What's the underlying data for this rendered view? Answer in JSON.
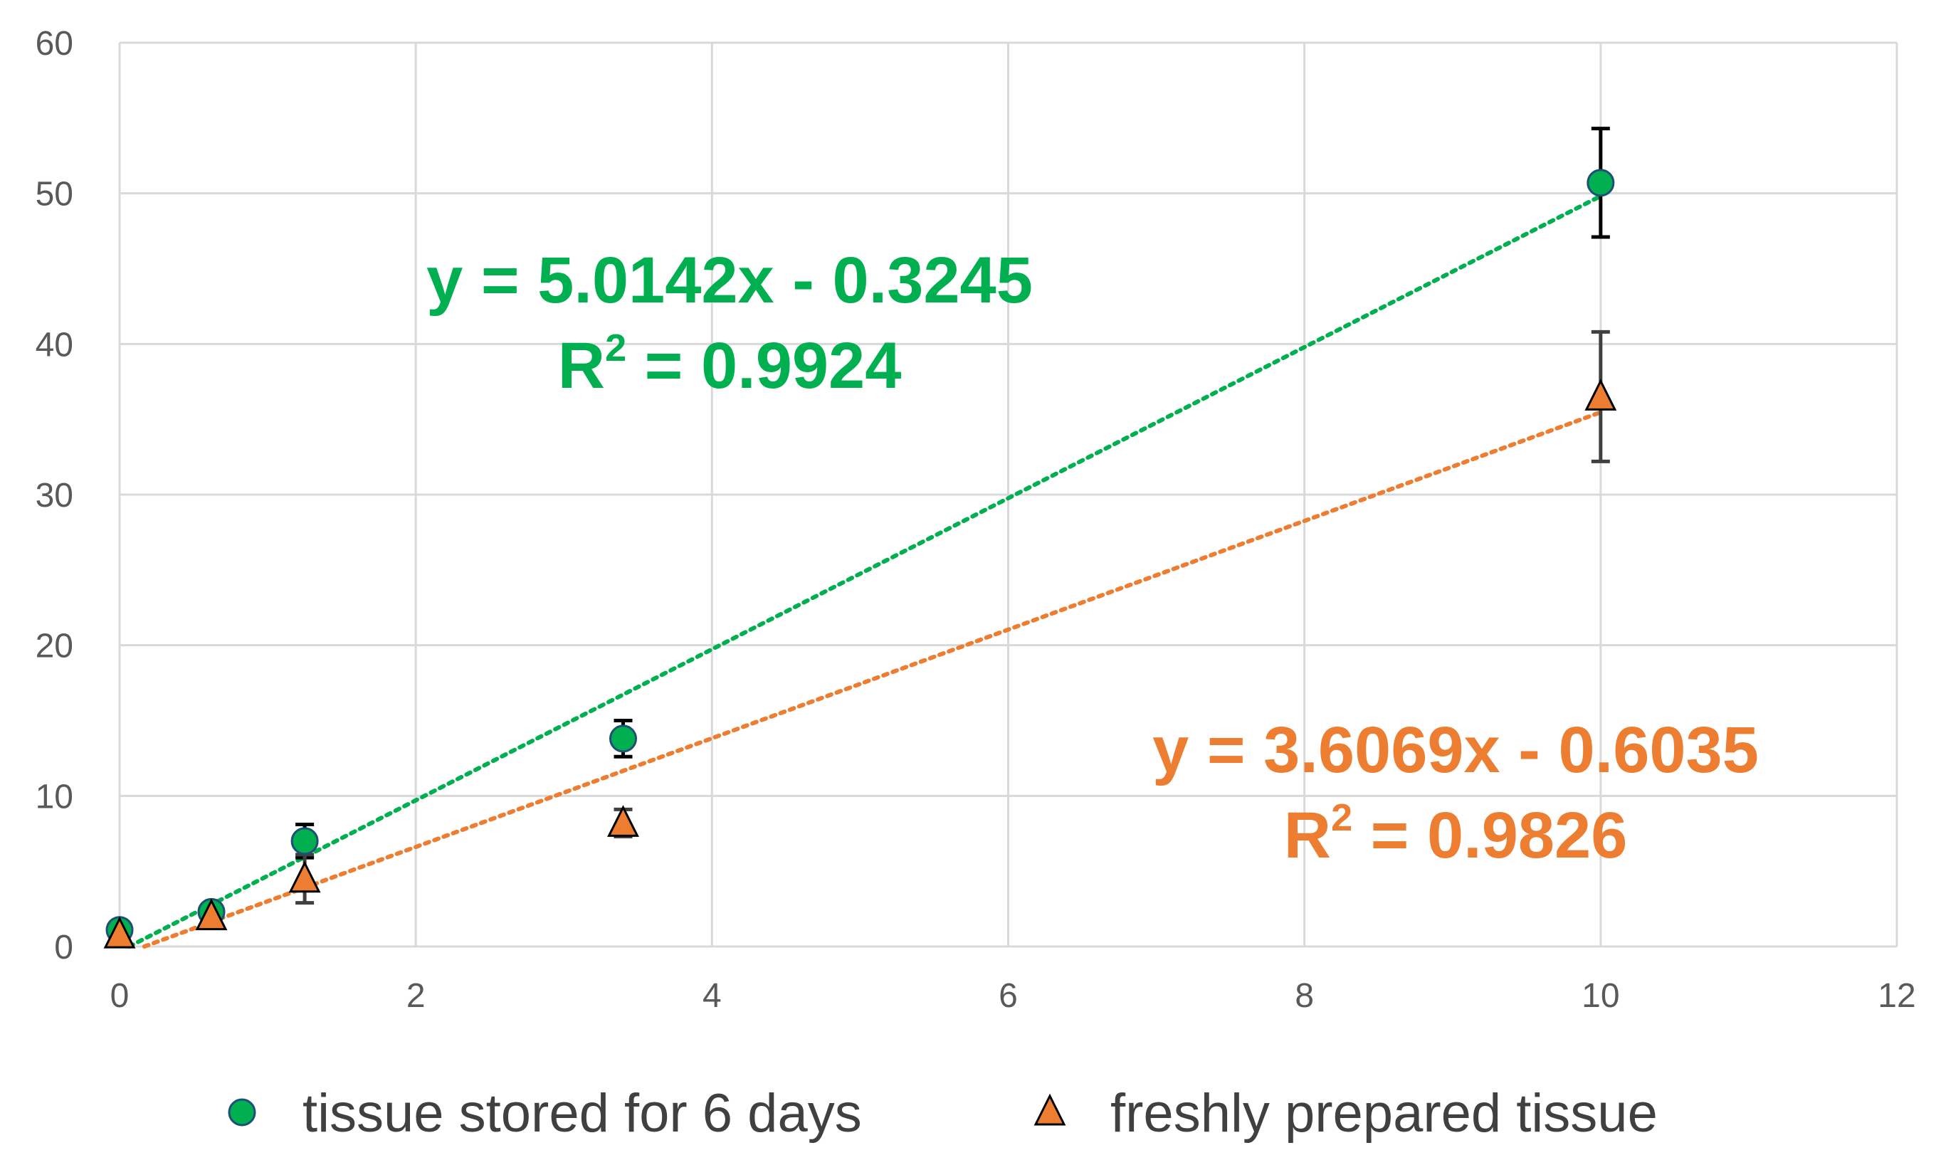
{
  "chart_data": {
    "type": "scatter",
    "title": "",
    "xlabel": "",
    "ylabel": "",
    "xlim": [
      0,
      12
    ],
    "ylim": [
      0,
      60
    ],
    "x_ticks": [
      0,
      2,
      4,
      6,
      8,
      10,
      12
    ],
    "y_ticks": [
      0,
      10,
      20,
      30,
      40,
      50,
      60
    ],
    "grid": true,
    "legend": "bottom",
    "series": [
      {
        "name": "tissue stored for 6 days",
        "marker": "circle",
        "color": "#00B050",
        "edge_color": "#1F4E79",
        "error_color": "#000000",
        "points": [
          {
            "x": 0,
            "y": 1.1,
            "err": 0.5
          },
          {
            "x": 0.62,
            "y": 2.3,
            "err": 0.5
          },
          {
            "x": 1.25,
            "y": 7.0,
            "err": 1.1
          },
          {
            "x": 3.4,
            "y": 13.8,
            "err": 1.2
          },
          {
            "x": 10,
            "y": 50.7,
            "err": 3.6
          }
        ],
        "trendline": {
          "type": "linear",
          "style": "dotted",
          "slope": 5.0142,
          "intercept": -0.3245,
          "equation": "y = 5.0142x - 0.3245",
          "r2_prefix": "R",
          "r2_exp": "2",
          "r2_value": " = 0.9924"
        }
      },
      {
        "name": "freshly prepared tissue",
        "marker": "triangle",
        "color": "#ED7D31",
        "edge_color": "#000000",
        "error_color": "#404040",
        "points": [
          {
            "x": 0,
            "y": 0.8,
            "err": 0.4
          },
          {
            "x": 0.62,
            "y": 2.0,
            "err": 0.4
          },
          {
            "x": 1.25,
            "y": 4.5,
            "err": 1.6
          },
          {
            "x": 3.4,
            "y": 8.2,
            "err": 0.9
          },
          {
            "x": 10,
            "y": 36.5,
            "err": 4.3
          }
        ],
        "trendline": {
          "type": "linear",
          "style": "dotted",
          "slope": 3.6069,
          "intercept": -0.6035,
          "equation": "y = 3.6069x - 0.6035",
          "r2_prefix": "R",
          "r2_exp": "2",
          "r2_value": " = 0.9826"
        }
      }
    ]
  }
}
